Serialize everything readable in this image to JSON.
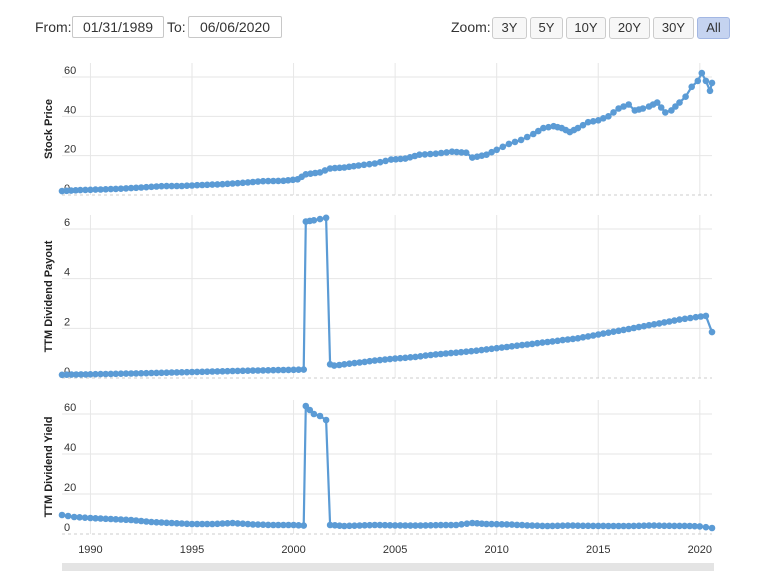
{
  "range": {
    "from_label": "From:",
    "from_value": "01/31/1989",
    "to_label": "To:",
    "to_value": "06/06/2020"
  },
  "zoom": {
    "label": "Zoom:",
    "buttons": [
      "3Y",
      "5Y",
      "10Y",
      "20Y",
      "30Y",
      "All"
    ],
    "active": "All"
  },
  "colors": {
    "line": "#5b9bd5",
    "grid": "#e6e6e6"
  },
  "chart_data": [
    {
      "type": "line",
      "ylabel": "Stock Price",
      "ylim": [
        0,
        60
      ],
      "yticks": [
        0,
        20,
        40,
        60
      ],
      "series": [
        {
          "points": [
            [
              1988.6,
              2
            ],
            [
              1989.5,
              2.5
            ],
            [
              1990.5,
              2.8
            ],
            [
              1991.5,
              3.2
            ],
            [
              1992.5,
              3.8
            ],
            [
              1993.5,
              4.5
            ],
            [
              1994.5,
              4.6
            ],
            [
              1995.5,
              5.1
            ],
            [
              1996.5,
              5.5
            ],
            [
              1997.5,
              6.2
            ],
            [
              1998.5,
              7.0
            ],
            [
              1999.5,
              7.2
            ],
            [
              2000.2,
              8.0
            ],
            [
              2000.6,
              10.5
            ],
            [
              2001.3,
              11.5
            ],
            [
              2001.8,
              13.5
            ],
            [
              2002.5,
              14.0
            ],
            [
              2003.2,
              15.0
            ],
            [
              2004.0,
              16.0
            ],
            [
              2004.8,
              18.0
            ],
            [
              2005.5,
              18.5
            ],
            [
              2006.2,
              20.5
            ],
            [
              2007.0,
              21.0
            ],
            [
              2007.8,
              22.0
            ],
            [
              2008.5,
              21.5
            ],
            [
              2008.8,
              19.0
            ],
            [
              2009.5,
              20.5
            ],
            [
              2010.0,
              23.0
            ],
            [
              2010.6,
              26.0
            ],
            [
              2011.2,
              28.0
            ],
            [
              2011.8,
              31.0
            ],
            [
              2012.3,
              34.0
            ],
            [
              2012.8,
              35.0
            ],
            [
              2013.2,
              34.0
            ],
            [
              2013.6,
              32.0
            ],
            [
              2014.0,
              34.0
            ],
            [
              2014.5,
              37.0
            ],
            [
              2015.0,
              38.0
            ],
            [
              2015.5,
              40.0
            ],
            [
              2016.0,
              44.0
            ],
            [
              2016.5,
              46.0
            ],
            [
              2016.8,
              43.0
            ],
            [
              2017.2,
              44.0
            ],
            [
              2017.5,
              45.0
            ],
            [
              2017.9,
              47.0
            ],
            [
              2018.3,
              42.0
            ],
            [
              2018.6,
              43.0
            ],
            [
              2019.0,
              47.0
            ],
            [
              2019.3,
              50.0
            ],
            [
              2019.6,
              55.0
            ],
            [
              2019.9,
              58.0
            ],
            [
              2020.1,
              62.0
            ],
            [
              2020.3,
              58.0
            ],
            [
              2020.5,
              53.0
            ],
            [
              2020.6,
              57.0
            ]
          ]
        }
      ]
    },
    {
      "type": "line",
      "ylabel": "TTM Dividend Payout",
      "ylim": [
        0,
        6
      ],
      "yticks": [
        0,
        2,
        4,
        6
      ],
      "series": [
        {
          "points": [
            [
              1988.6,
              0.13
            ],
            [
              1990.0,
              0.15
            ],
            [
              1992.0,
              0.18
            ],
            [
              1994.0,
              0.22
            ],
            [
              1996.0,
              0.26
            ],
            [
              1998.0,
              0.3
            ],
            [
              2000.0,
              0.33
            ],
            [
              2000.5,
              0.34
            ],
            [
              2000.6,
              6.3
            ],
            [
              2001.0,
              6.35
            ],
            [
              2001.3,
              6.4
            ],
            [
              2001.6,
              6.45
            ],
            [
              2001.8,
              0.55
            ],
            [
              2002.0,
              0.5
            ],
            [
              2003.0,
              0.6
            ],
            [
              2004.0,
              0.7
            ],
            [
              2005.0,
              0.78
            ],
            [
              2006.0,
              0.85
            ],
            [
              2007.0,
              0.95
            ],
            [
              2008.0,
              1.02
            ],
            [
              2009.0,
              1.1
            ],
            [
              2010.0,
              1.2
            ],
            [
              2011.0,
              1.3
            ],
            [
              2012.0,
              1.4
            ],
            [
              2013.0,
              1.5
            ],
            [
              2014.0,
              1.6
            ],
            [
              2015.0,
              1.75
            ],
            [
              2016.0,
              1.9
            ],
            [
              2017.0,
              2.05
            ],
            [
              2018.0,
              2.2
            ],
            [
              2019.0,
              2.35
            ],
            [
              2019.8,
              2.45
            ],
            [
              2020.3,
              2.5
            ],
            [
              2020.6,
              1.85
            ]
          ]
        }
      ]
    },
    {
      "type": "line",
      "ylabel": "TTM Dividend Yield",
      "ylim": [
        0,
        60
      ],
      "yticks": [
        0,
        20,
        40,
        60
      ],
      "series": [
        {
          "points": [
            [
              1988.6,
              9.5
            ],
            [
              1989.2,
              8.5
            ],
            [
              1990.0,
              8.0
            ],
            [
              1991.0,
              7.5
            ],
            [
              1992.0,
              7.0
            ],
            [
              1993.0,
              6.0
            ],
            [
              1994.0,
              5.5
            ],
            [
              1995.0,
              5.0
            ],
            [
              1996.0,
              5.0
            ],
            [
              1997.0,
              5.5
            ],
            [
              1998.0,
              4.8
            ],
            [
              1999.0,
              4.5
            ],
            [
              2000.0,
              4.5
            ],
            [
              2000.5,
              4.2
            ],
            [
              2000.6,
              64.0
            ],
            [
              2001.0,
              60.0
            ],
            [
              2001.3,
              59.0
            ],
            [
              2001.6,
              57.0
            ],
            [
              2001.8,
              4.5
            ],
            [
              2002.5,
              4.0
            ],
            [
              2004.0,
              4.5
            ],
            [
              2005.0,
              4.3
            ],
            [
              2006.0,
              4.2
            ],
            [
              2007.0,
              4.4
            ],
            [
              2008.0,
              4.5
            ],
            [
              2008.8,
              5.5
            ],
            [
              2009.5,
              5.0
            ],
            [
              2010.5,
              4.8
            ],
            [
              2011.5,
              4.3
            ],
            [
              2012.5,
              4.0
            ],
            [
              2013.5,
              4.2
            ],
            [
              2014.5,
              4.1
            ],
            [
              2015.5,
              4.0
            ],
            [
              2016.5,
              4.0
            ],
            [
              2017.5,
              4.2
            ],
            [
              2018.5,
              4.1
            ],
            [
              2019.5,
              4.0
            ],
            [
              2020.0,
              3.8
            ],
            [
              2020.6,
              3.0
            ]
          ]
        }
      ]
    }
  ],
  "x_axis": {
    "ticks": [
      1990,
      1995,
      2000,
      2005,
      2010,
      2015,
      2020
    ],
    "xlim": [
      1988.6,
      2020.6
    ]
  }
}
